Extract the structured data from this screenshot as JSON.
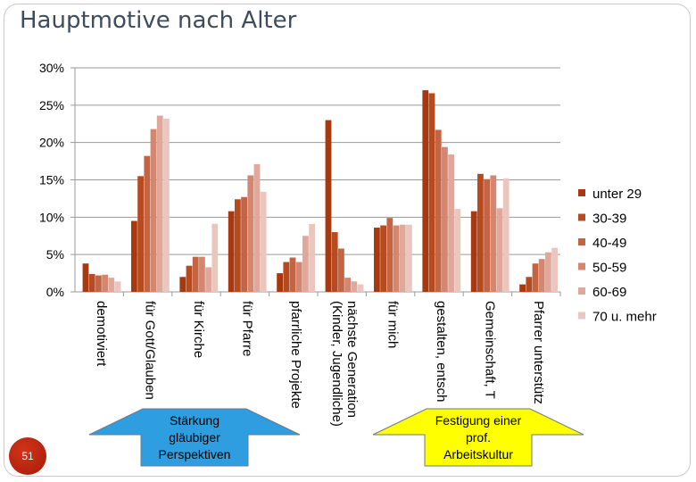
{
  "slide": {
    "title": "Hauptmotive nach Alter",
    "page_number": "51"
  },
  "colors": {
    "series": [
      "#a8380d",
      "#b84a1f",
      "#c46443",
      "#d48670",
      "#dfa89a",
      "#eac6be"
    ],
    "arrow_left_fill": "#2e9ee0",
    "arrow_right_fill": "#ffff00",
    "arrow_stroke": "#6b7a8c"
  },
  "annotations": {
    "left_arrow": [
      "Stärkung",
      "gläubiger",
      "Perspektiven"
    ],
    "right_arrow": [
      "Festigung einer",
      "prof.",
      "Arbeitskultur"
    ]
  },
  "chart_data": {
    "type": "bar",
    "title": "Hauptmotive nach Alter",
    "ylim": [
      0,
      30
    ],
    "yticks": [
      "0%",
      "5%",
      "10%",
      "15%",
      "20%",
      "25%",
      "30%"
    ],
    "grid": true,
    "legend_position": "right",
    "categories": [
      [
        "demotiviert"
      ],
      [
        "für Gott/Glauben"
      ],
      [
        "für Kirche"
      ],
      [
        "für Pfarre"
      ],
      [
        "pfarrliche Projekte"
      ],
      [
        "nächste Generation",
        "(Kinder, Jugendliche)"
      ],
      [
        "für mich"
      ],
      [
        "gestalten, entsch"
      ],
      [
        "Gemeinschaft, T"
      ],
      [
        "Pfarrer unterstütz"
      ]
    ],
    "series": [
      {
        "name": "unter 29",
        "values": [
          3.8,
          9.5,
          2.0,
          10.8,
          2.5,
          23.0,
          8.6,
          27.0,
          10.8,
          1.0
        ]
      },
      {
        "name": "30-39",
        "values": [
          2.4,
          15.5,
          3.5,
          12.4,
          4.0,
          8.0,
          8.9,
          26.6,
          15.8,
          2.0
        ]
      },
      {
        "name": "40-49",
        "values": [
          2.2,
          18.2,
          4.7,
          12.7,
          4.6,
          5.8,
          9.9,
          21.7,
          15.1,
          3.8
        ]
      },
      {
        "name": "50-59",
        "values": [
          2.3,
          21.8,
          4.7,
          15.6,
          4.0,
          1.9,
          8.9,
          19.4,
          15.6,
          4.4
        ]
      },
      {
        "name": "60-69",
        "values": [
          1.9,
          23.6,
          3.3,
          17.1,
          7.5,
          1.4,
          9.0,
          18.4,
          11.2,
          5.3
        ]
      },
      {
        "name": "70 u. mehr",
        "values": [
          1.4,
          23.2,
          9.1,
          13.4,
          9.1,
          1.0,
          9.0,
          11.1,
          15.2,
          5.9
        ]
      }
    ]
  }
}
